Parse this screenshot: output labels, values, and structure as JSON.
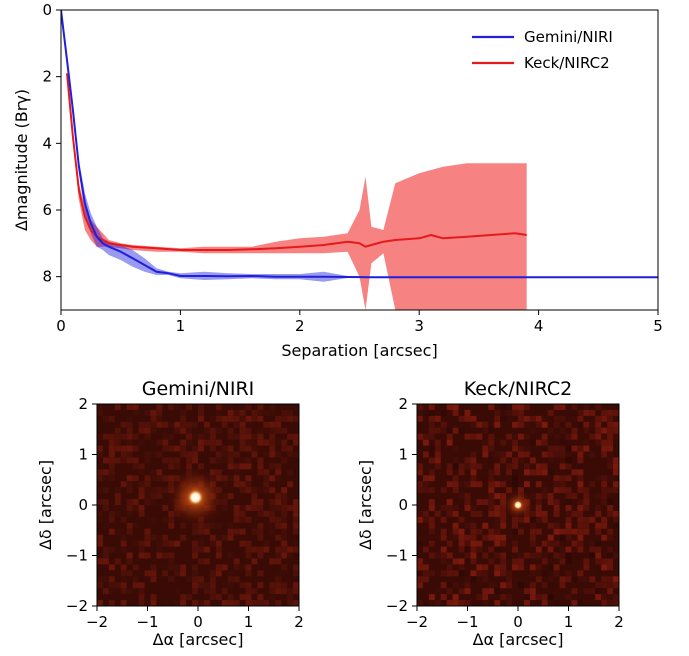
{
  "chart_data": [
    {
      "type": "line",
      "xlabel": "Separation [arcsec]",
      "ylabel": "Δmagnitude (Brγ)",
      "xlim": [
        0,
        5
      ],
      "ylim": [
        9,
        0
      ],
      "y_inverted": true,
      "xticks": [
        "0",
        "1",
        "2",
        "3",
        "4",
        "5"
      ],
      "yticks": [
        "0",
        "2",
        "4",
        "6",
        "8"
      ],
      "legend_position": "top-right",
      "grid": false,
      "series": [
        {
          "name": "Gemini/NIRI",
          "color": "#1f1fdc",
          "x": [
            0.0,
            0.05,
            0.1,
            0.15,
            0.2,
            0.25,
            0.3,
            0.35,
            0.4,
            0.5,
            0.6,
            0.7,
            0.8,
            0.9,
            1.0,
            1.2,
            1.4,
            1.6,
            1.8,
            2.0,
            2.2,
            2.4,
            2.6,
            2.8,
            3.0,
            3.5,
            4.0,
            4.5,
            5.0
          ],
          "y": [
            0.0,
            1.5,
            3.0,
            4.7,
            5.8,
            6.4,
            6.8,
            7.0,
            7.1,
            7.25,
            7.45,
            7.65,
            7.85,
            7.9,
            7.98,
            7.98,
            7.99,
            7.98,
            8.0,
            8.0,
            8.0,
            8.01,
            8.02,
            8.02,
            8.02,
            8.02,
            8.02,
            8.02,
            8.02
          ],
          "band_lower": [
            0.0,
            1.5,
            3.0,
            4.5,
            5.5,
            6.1,
            6.5,
            6.85,
            6.95,
            7.05,
            7.2,
            7.45,
            7.75,
            7.85,
            7.9,
            7.85,
            7.9,
            7.92,
            7.92,
            7.92,
            7.85,
            7.98,
            8.0,
            8.01,
            8.01,
            8.01,
            8.01,
            8.01,
            8.01
          ],
          "band_upper": [
            0.0,
            1.5,
            3.0,
            4.9,
            6.1,
            6.7,
            7.1,
            7.2,
            7.35,
            7.5,
            7.7,
            7.85,
            7.95,
            7.95,
            8.05,
            8.1,
            8.08,
            8.05,
            8.08,
            8.08,
            8.15,
            8.04,
            8.04,
            8.03,
            8.03,
            8.03,
            8.03,
            8.03,
            8.03
          ]
        },
        {
          "name": "Keck/NIRC2",
          "color": "#e41a1c",
          "band_color": "#f77b7b",
          "x": [
            0.05,
            0.1,
            0.15,
            0.2,
            0.25,
            0.3,
            0.35,
            0.4,
            0.5,
            0.6,
            0.8,
            1.0,
            1.2,
            1.4,
            1.6,
            1.8,
            2.0,
            2.2,
            2.4,
            2.5,
            2.55,
            2.6,
            2.7,
            2.8,
            3.0,
            3.1,
            3.2,
            3.4,
            3.6,
            3.8,
            3.9
          ],
          "y": [
            1.9,
            3.8,
            5.4,
            6.2,
            6.6,
            6.8,
            6.9,
            7.0,
            7.05,
            7.1,
            7.15,
            7.2,
            7.2,
            7.2,
            7.18,
            7.15,
            7.1,
            7.05,
            6.95,
            7.0,
            7.1,
            7.05,
            6.95,
            6.9,
            6.85,
            6.75,
            6.85,
            6.8,
            6.75,
            6.7,
            6.75
          ],
          "band_lower": [
            1.9,
            3.6,
            5.2,
            5.9,
            6.3,
            6.5,
            6.7,
            6.9,
            7.0,
            7.05,
            7.1,
            7.15,
            7.1,
            7.1,
            7.1,
            6.95,
            6.85,
            6.8,
            6.7,
            6.0,
            5.0,
            6.5,
            6.6,
            5.2,
            4.9,
            4.8,
            4.7,
            4.6,
            4.6,
            4.6,
            4.6
          ],
          "band_upper": [
            1.9,
            4.0,
            5.7,
            6.6,
            6.9,
            7.1,
            7.1,
            7.1,
            7.15,
            7.2,
            7.25,
            7.25,
            7.3,
            7.3,
            7.3,
            7.3,
            7.3,
            7.3,
            7.25,
            8.0,
            9.0,
            7.6,
            7.3,
            9.0,
            9.0,
            9.0,
            9.0,
            9.0,
            9.0,
            9.0,
            9.0
          ]
        }
      ]
    },
    {
      "type": "heatmap",
      "title": "Gemini/NIRI",
      "xlabel": "Δα [arcsec]",
      "ylabel": "Δδ [arcsec]",
      "xlim": [
        -2,
        2
      ],
      "ylim": [
        -2,
        2
      ],
      "xticks": [
        "−2",
        "−1",
        "0",
        "1",
        "2"
      ],
      "yticks": [
        "−2",
        "−1",
        "0",
        "1",
        "2"
      ],
      "source": {
        "x": -0.05,
        "y": 0.15,
        "core_radius": 0.14,
        "halo_radius": 0.6
      }
    },
    {
      "type": "heatmap",
      "title": "Keck/NIRC2",
      "xlabel": "Δα [arcsec]",
      "ylabel": "Δδ [arcsec]",
      "xlim": [
        -2,
        2
      ],
      "ylim": [
        -2,
        2
      ],
      "xticks": [
        "−2",
        "−1",
        "0",
        "1",
        "2"
      ],
      "yticks": [
        "−2",
        "−1",
        "0",
        "1",
        "2"
      ],
      "source": {
        "x": 0.0,
        "y": 0.0,
        "core_radius": 0.08,
        "halo_radius": 0.3
      }
    }
  ]
}
